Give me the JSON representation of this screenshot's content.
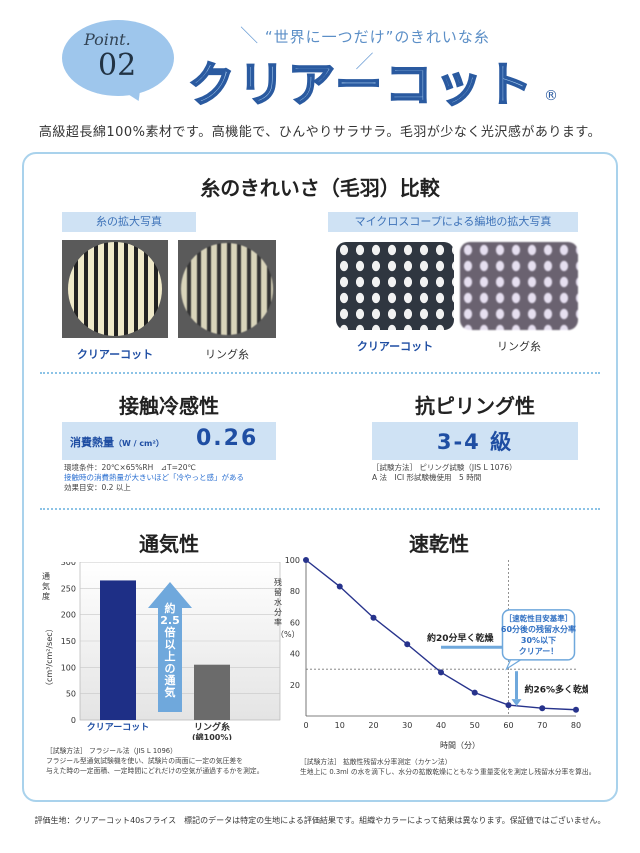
{
  "header": {
    "point_word": "Point.",
    "point_num": "02",
    "slogan": "“世界に一つだけ”のきれいな糸",
    "brand": "クリアーコット",
    "reg_mark": "®",
    "tagline": "高級超長綿100%素材です。高機能で、ひんやりサラサラ。毛羽が少なく光沢感があります。"
  },
  "fluff": {
    "title": "糸のきれいさ（毛羽）比較",
    "left_tag": "糸の拡大写真",
    "right_tag": "マイクロスコープによる編地の拡大写真",
    "label_clear": "クリアーコット",
    "label_ring": "リング糸"
  },
  "cool": {
    "title": "接触冷感性",
    "metric_label": "消費熱量",
    "metric_unit": "（W / cm²）",
    "value": "0.26",
    "note1": "環境条件：20℃×65%RH　⊿T=20℃",
    "note2": "接触時の消費熱量が大きいほど「冷やっと感」がある",
    "note3": "効果目安：0.2 以上"
  },
  "pilling": {
    "title": "抗ピリング性",
    "value": "3-4 級",
    "note1": "［試験方法］ ピリング試験（JIS L 1076）",
    "note2": "A 法　ICI 形試験機使用　5 時間"
  },
  "air": {
    "title": "通気性",
    "ylabel": "通気度",
    "yunit": "（cm³/cm²/sec）",
    "arrow_text": "約 2.5 倍以上の通気",
    "note1": "［試験方法］ フラジール法（JIS L 1096）",
    "note2": "フラジール型通気試験機を使い、試験片の両面に一定の気圧差を",
    "note3": "与えた時の一定面積、一定時間にどれだけの空気が通過するかを測定。"
  },
  "dry": {
    "title": "速乾性",
    "ylabel": "残留水分率",
    "yunit": "（%）",
    "xlabel": "時間（分）",
    "ann_fast": "約20分早く乾燥",
    "ann_more": "約26%多く乾燥",
    "box_lines": [
      "［速乾性目安基準］",
      "60分後の残留水分率",
      "30%以下",
      "クリアー！"
    ],
    "note1": "［試験方法］ 拡散性残留水分率測定（カケン法）",
    "note2": "生地上に 0.3ml の水を滴下し、水分の拡散乾燥にともなう重量変化を測定し残留水分率を算出。"
  },
  "footer": "評価生地：クリアーコット40sフライス　標記のデータは特定の生地による評価結果です。組織やカラーによって結果は異なります。保証値ではございません。",
  "chart_data": [
    {
      "type": "bar",
      "title": "通気性",
      "categories": [
        "クリアーコット",
        "リング糸\n(綿100%)"
      ],
      "values": [
        265,
        105
      ],
      "ylabel": "通気度 （cm³/cm²/sec）",
      "ylim": [
        0,
        300
      ],
      "yticks": [
        0,
        50,
        100,
        150,
        200,
        250,
        300
      ],
      "colors": [
        "#1e2f86",
        "#6b6b6b"
      ],
      "grid": true
    },
    {
      "type": "line",
      "title": "速乾性",
      "x": [
        0,
        10,
        20,
        30,
        40,
        50,
        60,
        70,
        80
      ],
      "values": [
        100,
        83,
        63,
        46,
        28,
        15,
        7,
        5,
        4
      ],
      "xlabel": "時間（分）",
      "ylabel": "残留水分率 （%）",
      "xlim": [
        0,
        80
      ],
      "ylim": [
        0,
        100
      ],
      "yticks": [
        0,
        20,
        40,
        60,
        80,
        100
      ],
      "reference_y": 30,
      "reference_x": 60,
      "color": "#27338c",
      "grid": false
    }
  ]
}
